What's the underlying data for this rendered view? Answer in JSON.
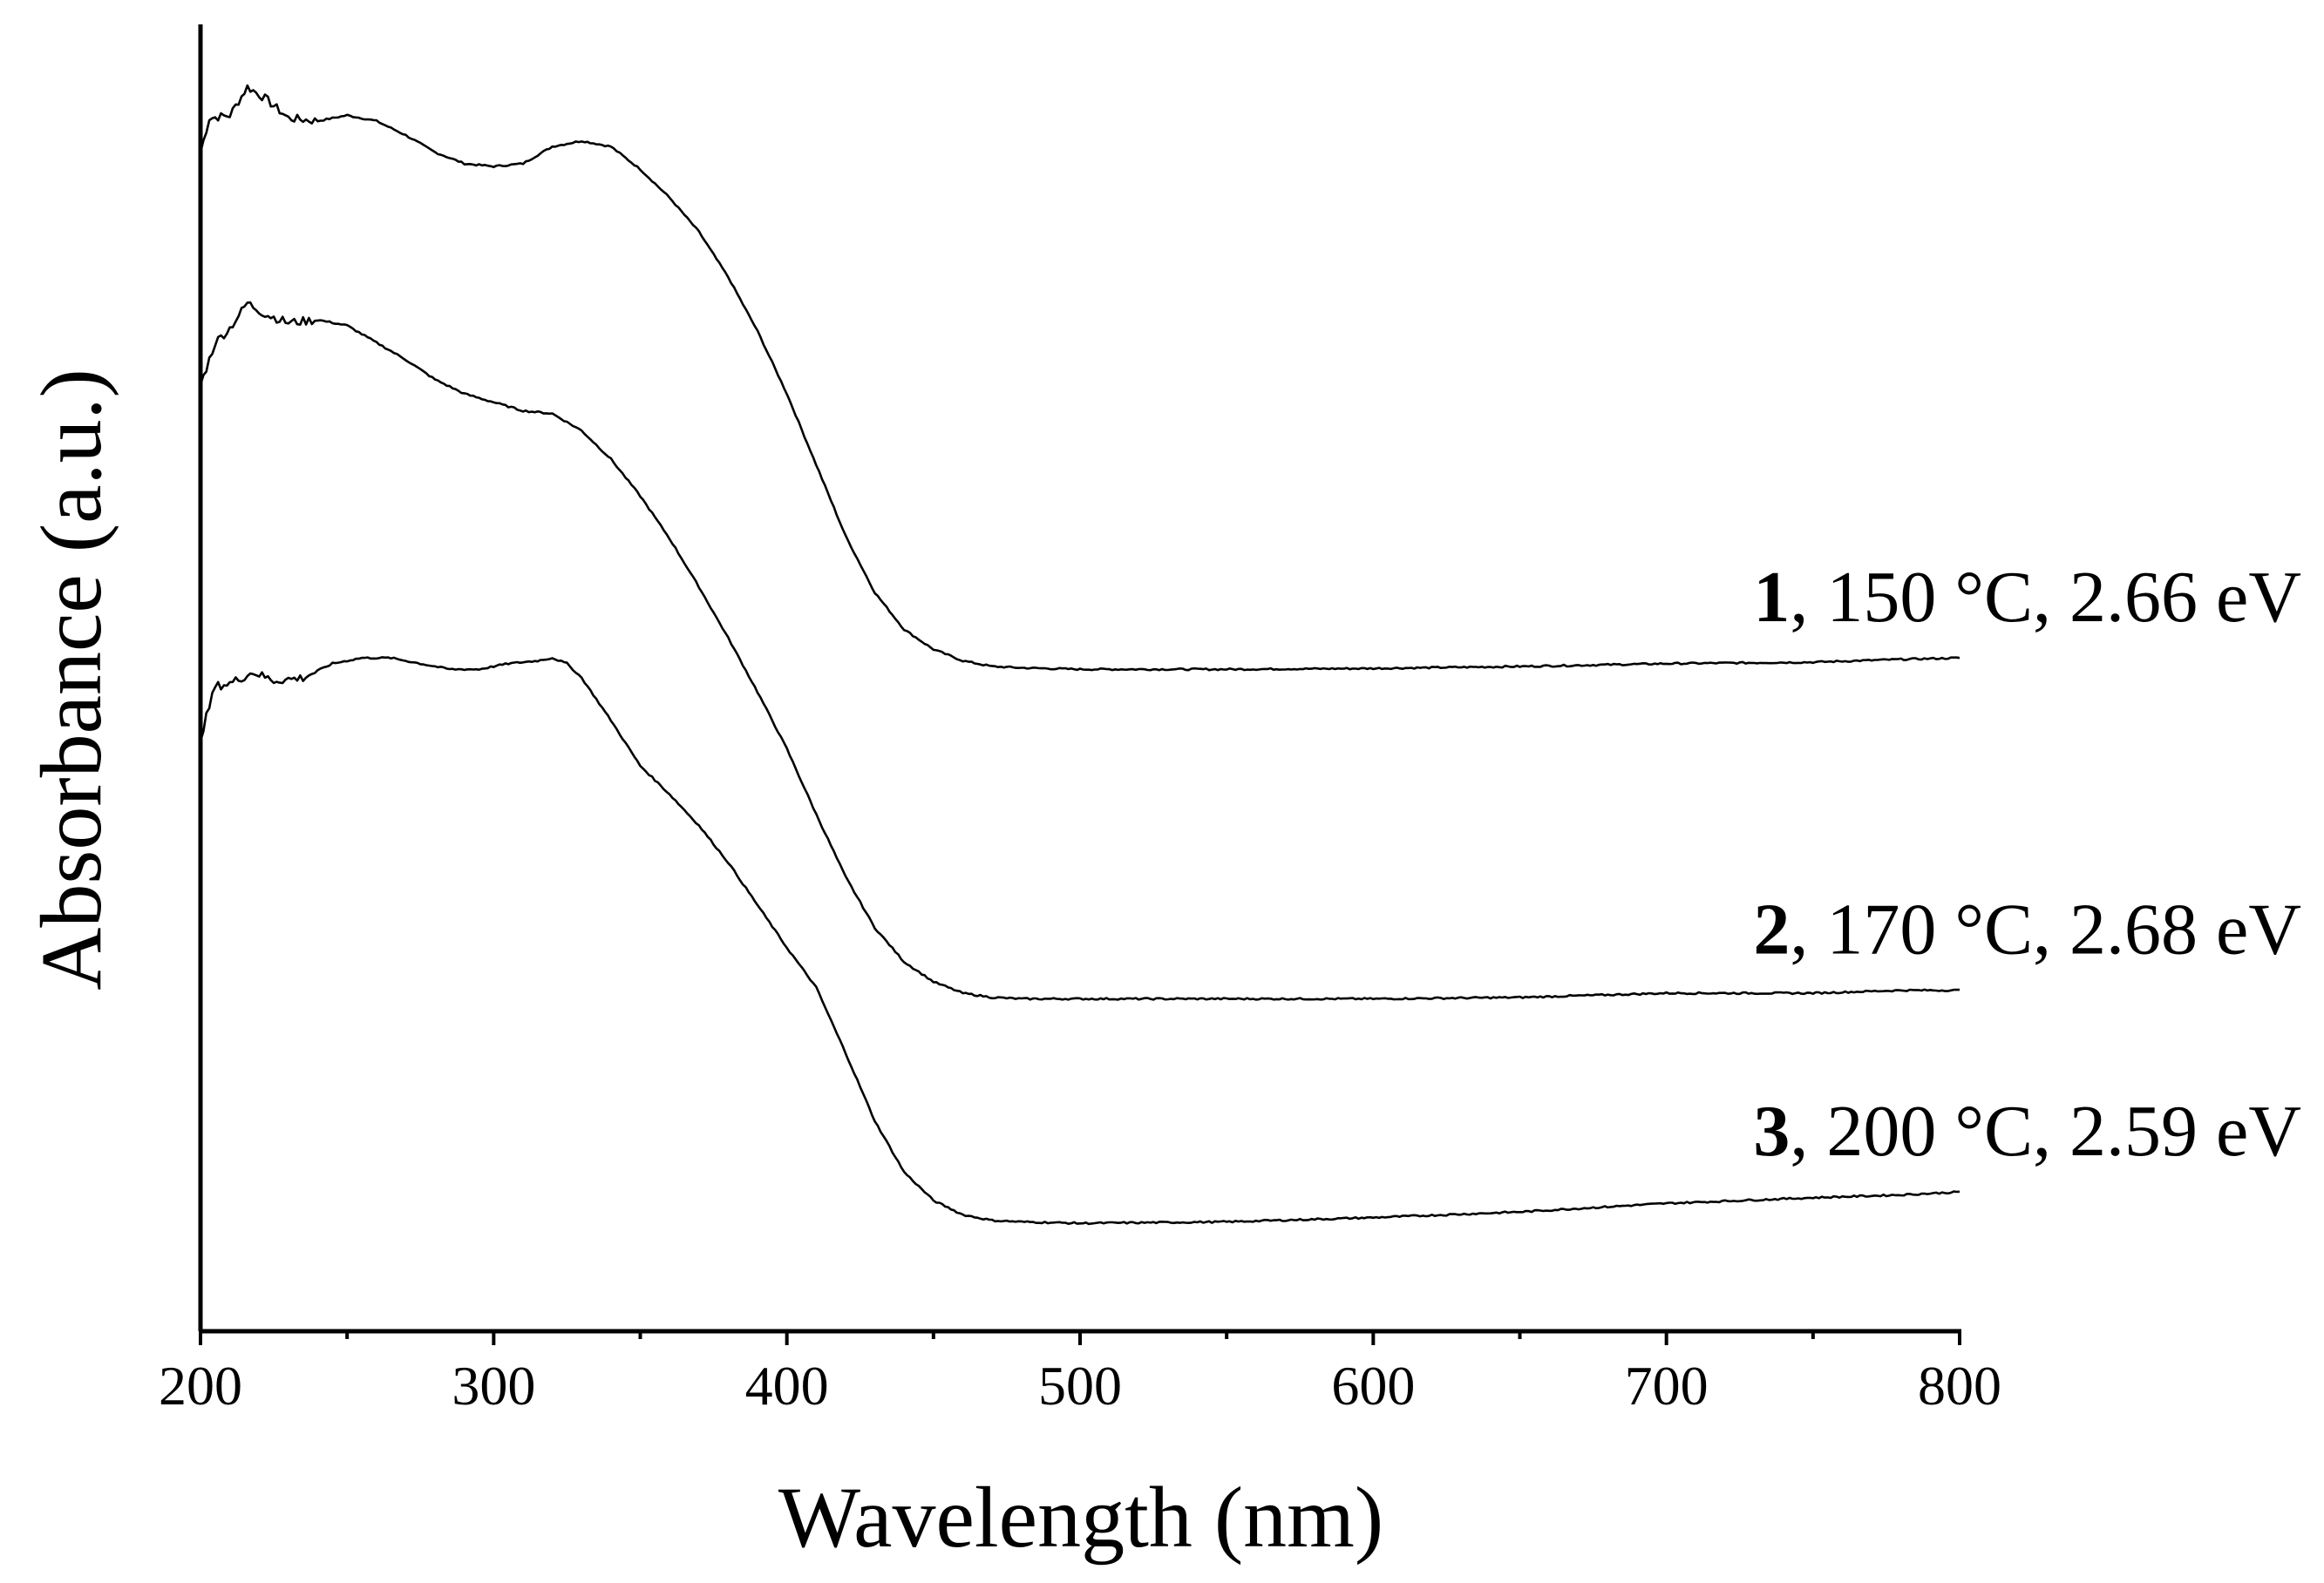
{
  "chart_data": {
    "type": "line",
    "title": "",
    "xlabel": "Wavelength (nm)",
    "ylabel": "Absorbance (a.u.)",
    "xlim": [
      200,
      800
    ],
    "ylim": [
      0,
      4.6
    ],
    "x_ticks": [
      200,
      300,
      400,
      500,
      600,
      700,
      800
    ],
    "x_tick_labels": [
      "200",
      "300",
      "400",
      "500",
      "600",
      "700",
      "800"
    ],
    "y_ticks_shown": false,
    "grid": false,
    "legend": "inline labels at right end of curves",
    "series": [
      {
        "id": "1",
        "label_number": "1",
        "label_text": ", 150 °C, 2.66 eV",
        "points": [
          [
            200,
            4.15
          ],
          [
            203,
            4.27
          ],
          [
            210,
            4.28
          ],
          [
            216,
            4.38
          ],
          [
            222,
            4.34
          ],
          [
            230,
            4.27
          ],
          [
            240,
            4.26
          ],
          [
            250,
            4.28
          ],
          [
            260,
            4.26
          ],
          [
            270,
            4.21
          ],
          [
            280,
            4.15
          ],
          [
            290,
            4.11
          ],
          [
            300,
            4.1
          ],
          [
            310,
            4.11
          ],
          [
            320,
            4.17
          ],
          [
            330,
            4.19
          ],
          [
            340,
            4.17
          ],
          [
            350,
            4.09
          ],
          [
            360,
            3.99
          ],
          [
            370,
            3.87
          ],
          [
            380,
            3.71
          ],
          [
            390,
            3.52
          ],
          [
            400,
            3.3
          ],
          [
            410,
            3.05
          ],
          [
            420,
            2.8
          ],
          [
            430,
            2.6
          ],
          [
            440,
            2.47
          ],
          [
            450,
            2.4
          ],
          [
            460,
            2.36
          ],
          [
            470,
            2.34
          ],
          [
            480,
            2.335
          ],
          [
            500,
            2.33
          ],
          [
            550,
            2.33
          ],
          [
            600,
            2.333
          ],
          [
            650,
            2.34
          ],
          [
            700,
            2.35
          ],
          [
            750,
            2.355
          ],
          [
            780,
            2.365
          ],
          [
            800,
            2.37
          ]
        ]
      },
      {
        "id": "2",
        "label_number": "2",
        "label_text": ", 170 °C, 2.68 eV",
        "points": [
          [
            200,
            3.33
          ],
          [
            205,
            3.48
          ],
          [
            210,
            3.53
          ],
          [
            216,
            3.62
          ],
          [
            222,
            3.58
          ],
          [
            230,
            3.55
          ],
          [
            240,
            3.56
          ],
          [
            250,
            3.54
          ],
          [
            260,
            3.48
          ],
          [
            270,
            3.42
          ],
          [
            280,
            3.35
          ],
          [
            290,
            3.3
          ],
          [
            300,
            3.27
          ],
          [
            310,
            3.24
          ],
          [
            320,
            3.23
          ],
          [
            330,
            3.17
          ],
          [
            340,
            3.07
          ],
          [
            350,
            2.94
          ],
          [
            360,
            2.79
          ],
          [
            370,
            2.62
          ],
          [
            380,
            2.44
          ],
          [
            390,
            2.25
          ],
          [
            400,
            2.05
          ],
          [
            410,
            1.82
          ],
          [
            420,
            1.6
          ],
          [
            430,
            1.42
          ],
          [
            440,
            1.3
          ],
          [
            450,
            1.23
          ],
          [
            460,
            1.19
          ],
          [
            470,
            1.175
          ],
          [
            480,
            1.17
          ],
          [
            500,
            1.17
          ],
          [
            550,
            1.17
          ],
          [
            600,
            1.17
          ],
          [
            650,
            1.175
          ],
          [
            700,
            1.19
          ],
          [
            750,
            1.19
          ],
          [
            780,
            1.2
          ],
          [
            800,
            1.2
          ]
        ]
      },
      {
        "id": "3",
        "label_number": "3",
        "label_text": ", 200 °C, 2.59 eV",
        "points": [
          [
            200,
            2.09
          ],
          [
            205,
            2.27
          ],
          [
            210,
            2.28
          ],
          [
            218,
            2.32
          ],
          [
            225,
            2.29
          ],
          [
            235,
            2.3
          ],
          [
            245,
            2.35
          ],
          [
            255,
            2.37
          ],
          [
            265,
            2.37
          ],
          [
            275,
            2.35
          ],
          [
            285,
            2.33
          ],
          [
            295,
            2.33
          ],
          [
            305,
            2.35
          ],
          [
            315,
            2.36
          ],
          [
            320,
            2.37
          ],
          [
            325,
            2.35
          ],
          [
            330,
            2.3
          ],
          [
            340,
            2.15
          ],
          [
            350,
            1.99
          ],
          [
            360,
            1.89
          ],
          [
            370,
            1.78
          ],
          [
            380,
            1.65
          ],
          [
            390,
            1.5
          ],
          [
            400,
            1.35
          ],
          [
            410,
            1.21
          ],
          [
            420,
            0.98
          ],
          [
            430,
            0.74
          ],
          [
            440,
            0.56
          ],
          [
            450,
            0.46
          ],
          [
            460,
            0.41
          ],
          [
            470,
            0.39
          ],
          [
            480,
            0.385
          ],
          [
            500,
            0.38
          ],
          [
            550,
            0.385
          ],
          [
            600,
            0.4
          ],
          [
            650,
            0.42
          ],
          [
            700,
            0.45
          ],
          [
            750,
            0.47
          ],
          [
            780,
            0.48
          ],
          [
            800,
            0.49
          ]
        ]
      }
    ]
  }
}
